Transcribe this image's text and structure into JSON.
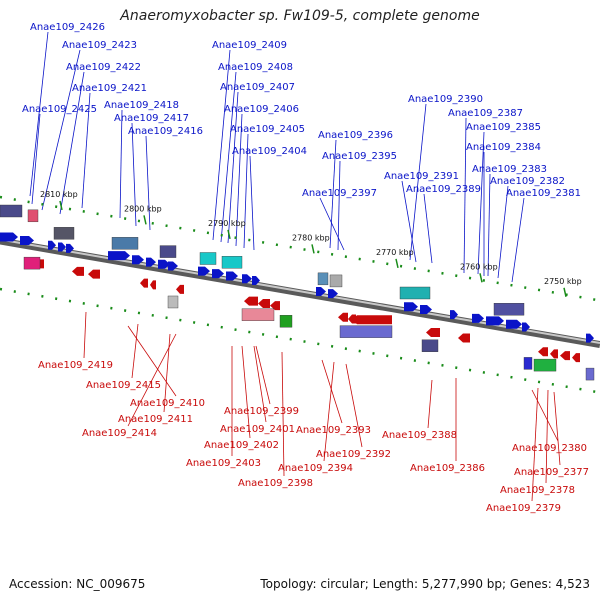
{
  "title": "Anaeromyxobacter sp. Fw109-5, complete genome",
  "footer": {
    "accession": "Accession: NC_009675",
    "topology": "Topology: circular; Length: 5,277,990 bp; Genes: 4,523"
  },
  "colors": {
    "forward": "#0a14c8",
    "reverse": "#c80a0a",
    "backbone": "#888888",
    "tick": "#1a8c1a"
  },
  "ticks": [
    "2810 kbp",
    "2800 kbp",
    "2790 kbp",
    "2780 kbp",
    "2770 kbp",
    "2760 kbp",
    "2750 kbp"
  ],
  "forward_genes": [
    "Anae109_2426",
    "Anae109_2423",
    "Anae109_2422",
    "Anae109_2421",
    "Anae109_2425",
    "Anae109_2418",
    "Anae109_2417",
    "Anae109_2416",
    "Anae109_2409",
    "Anae109_2408",
    "Anae109_2407",
    "Anae109_2406",
    "Anae109_2405",
    "Anae109_2404",
    "Anae109_2396",
    "Anae109_2395",
    "Anae109_2397",
    "Anae109_2390",
    "Anae109_2387",
    "Anae109_2385",
    "Anae109_2384",
    "Anae109_2391",
    "Anae109_2389",
    "Anae109_2383",
    "Anae109_2382",
    "Anae109_2381"
  ],
  "reverse_genes": [
    "Anae109_2419",
    "Anae109_2415",
    "Anae109_2410",
    "Anae109_2411",
    "Anae109_2414",
    "Anae109_2399",
    "Anae109_2401",
    "Anae109_2402",
    "Anae109_2403",
    "Anae109_2393",
    "Anae109_2398",
    "Anae109_2394",
    "Anae109_2392",
    "Anae109_2388",
    "Anae109_2386",
    "Anae109_2380",
    "Anae109_2377",
    "Anae109_2378",
    "Anae109_2379"
  ]
}
